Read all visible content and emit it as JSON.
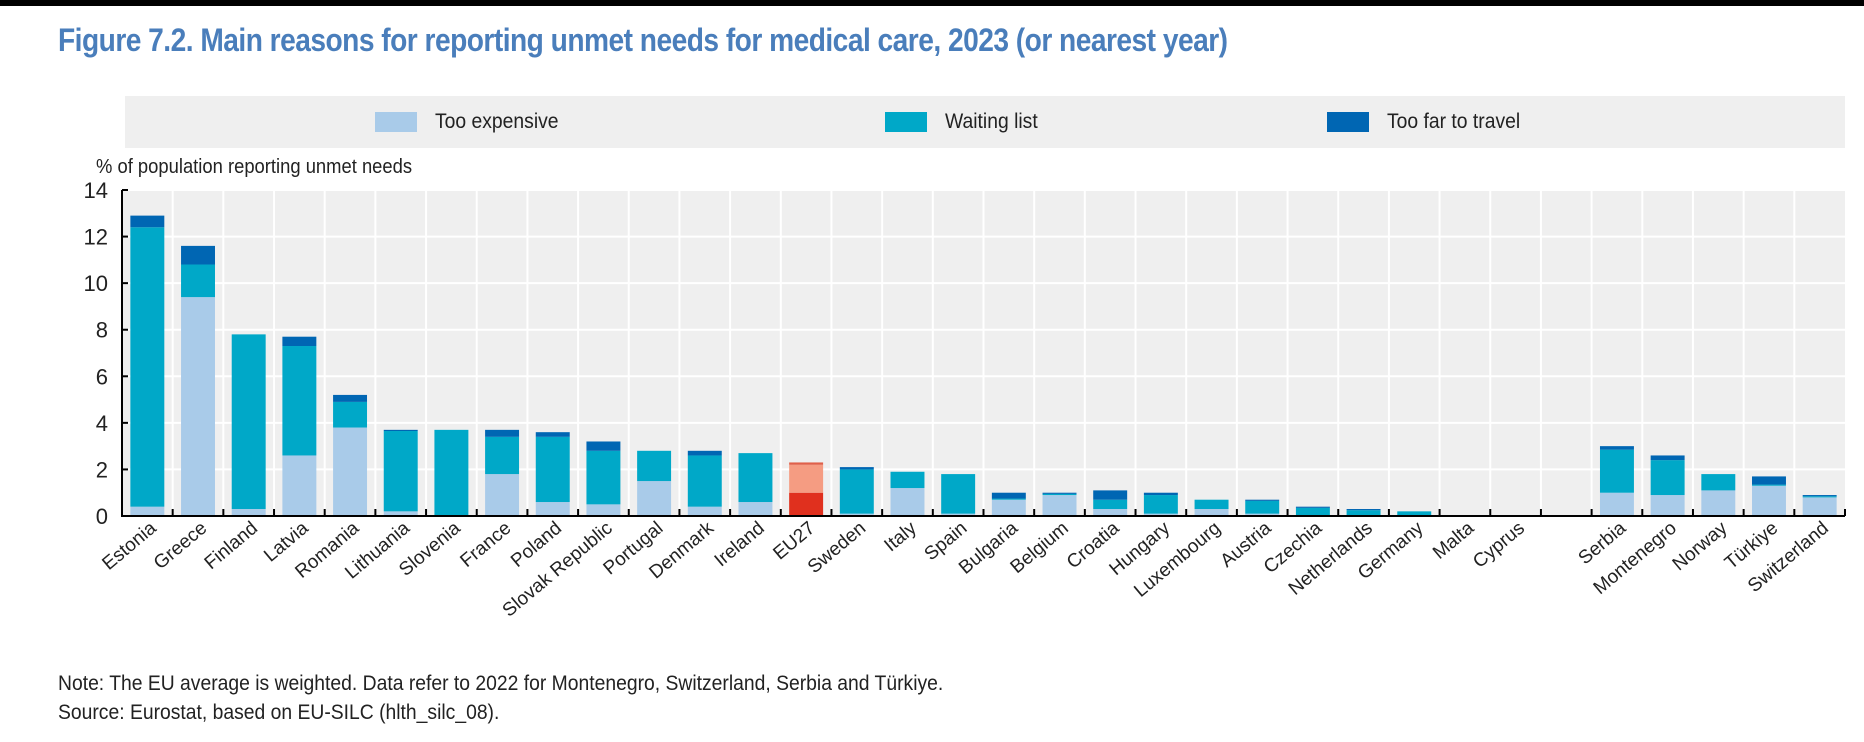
{
  "title": "Figure 7.2. Main reasons for reporting unmet needs for medical care, 2023 (or nearest year)",
  "notes": {
    "note": "Note: The EU average is weighted. Data refer to 2022 for Montenegro, Switzerland, Serbia and Türkiye.",
    "source": "Source: Eurostat, based on EU-SILC (hlth_silc_08)."
  },
  "legend": [
    {
      "name": "Too expensive",
      "color": "#a9cbe9"
    },
    {
      "name": "Waiting list",
      "color": "#00a8c8"
    },
    {
      "name": "Too far to travel",
      "color": "#0066b3"
    }
  ],
  "highlight_colors": {
    "Too expensive": "#e0301e",
    "Waiting list": "#f59c82",
    "Too far to travel": "#e0604a"
  },
  "chart_data": {
    "type": "bar",
    "stacked": true,
    "title": "Figure 7.2. Main reasons for reporting unmet needs for medical care, 2023 (or nearest year)",
    "xlabel": "",
    "ylabel": "% of population reporting unmet needs",
    "ylim": [
      0,
      14
    ],
    "yticks": [
      0,
      2,
      4,
      6,
      8,
      10,
      12,
      14
    ],
    "grid": true,
    "legend_position": "top",
    "highlight_category": "EU27",
    "categories": [
      "Estonia",
      "Greece",
      "Finland",
      "Latvia",
      "Romania",
      "Lithuania",
      "Slovenia",
      "France",
      "Poland",
      "Slovak Republic",
      "Portugal",
      "Denmark",
      "Ireland",
      "EU27",
      "Sweden",
      "Italy",
      "Spain",
      "Bulgaria",
      "Belgium",
      "Croatia",
      "Hungary",
      "Luxembourg",
      "Austria",
      "Czechia",
      "Netherlands",
      "Germany",
      "Malta",
      "Cyprus",
      "",
      "Serbia",
      "Montenegro",
      "Norway",
      "Türkiye",
      "Switzerland"
    ],
    "series": [
      {
        "name": "Too expensive",
        "values": [
          0.4,
          9.4,
          0.3,
          2.6,
          3.8,
          0.2,
          0.0,
          1.8,
          0.6,
          0.5,
          1.5,
          0.4,
          0.6,
          1.0,
          0.1,
          1.2,
          0.1,
          0.7,
          0.9,
          0.3,
          0.1,
          0.3,
          0.1,
          0.0,
          0.0,
          0.0,
          0.0,
          0.0,
          null,
          1.0,
          0.9,
          1.1,
          1.3,
          0.8
        ]
      },
      {
        "name": "Waiting list",
        "values": [
          12.0,
          1.4,
          7.5,
          4.7,
          1.1,
          3.45,
          3.7,
          1.6,
          2.8,
          2.3,
          1.3,
          2.2,
          2.1,
          1.2,
          1.9,
          0.7,
          1.7,
          0.05,
          0.05,
          0.4,
          0.8,
          0.4,
          0.55,
          0.35,
          0.25,
          0.2,
          0.0,
          0.0,
          null,
          1.85,
          1.5,
          0.7,
          0.05,
          0.05
        ]
      },
      {
        "name": "Too far to travel",
        "values": [
          0.5,
          0.8,
          0.0,
          0.4,
          0.3,
          0.05,
          0.0,
          0.3,
          0.2,
          0.4,
          0.0,
          0.2,
          0.0,
          0.1,
          0.1,
          0.0,
          0.0,
          0.25,
          0.05,
          0.4,
          0.1,
          0.0,
          0.05,
          0.05,
          0.05,
          0.0,
          0.0,
          0.0,
          null,
          0.15,
          0.2,
          0.0,
          0.35,
          0.05
        ]
      }
    ]
  }
}
